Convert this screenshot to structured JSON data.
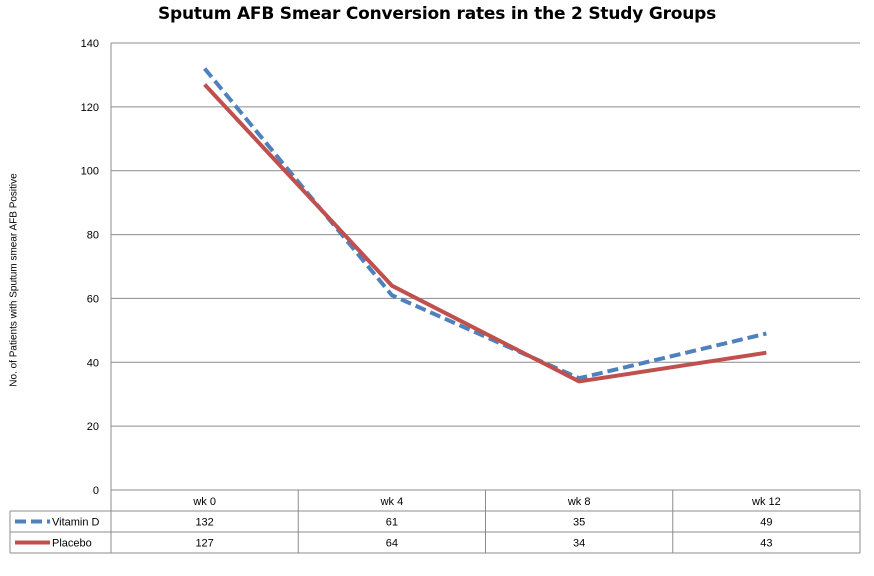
{
  "chart_data": {
    "type": "line",
    "title": "Sputum AFB Smear Conversion rates in the 2 Study Groups",
    "xlabel": "",
    "ylabel": "No. of Patients with Sputum smear AFB Positive",
    "categories": [
      "wk 0",
      "wk 4",
      "wk 8",
      "wk 12"
    ],
    "ylim": [
      0,
      140
    ],
    "yticks": [
      0,
      20,
      40,
      60,
      80,
      100,
      120,
      140
    ],
    "grid": true,
    "legend": "data table below chart",
    "series": [
      {
        "name": "Vitamin D",
        "values": [
          132,
          61,
          35,
          49
        ],
        "color": "#4f81bd",
        "style": "dashed"
      },
      {
        "name": "Placebo",
        "values": [
          127,
          64,
          34,
          43
        ],
        "color": "#c0504d",
        "style": "solid"
      }
    ]
  }
}
